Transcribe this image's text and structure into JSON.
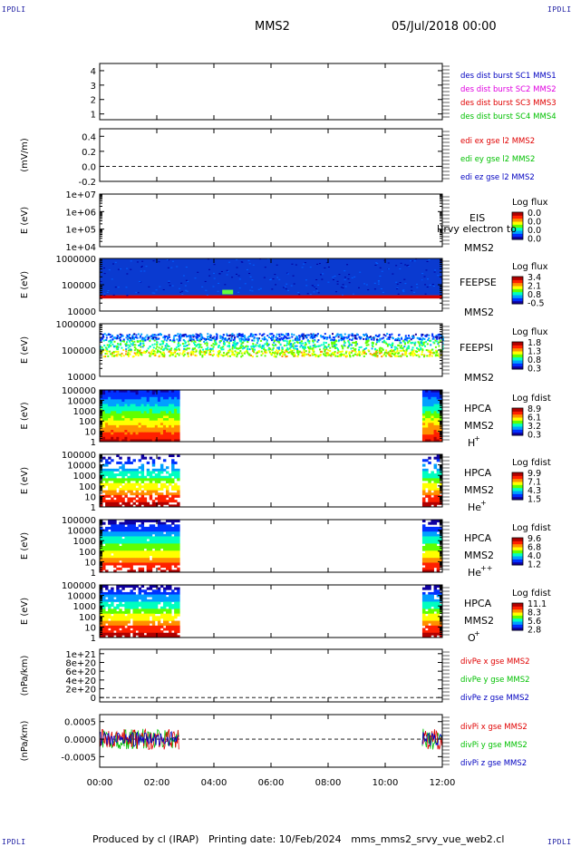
{
  "corners": {
    "tl": "IPDLI",
    "tr": "IPDLI",
    "bl": "IPDLI",
    "br": "IPDLI"
  },
  "header": {
    "title": "MMS2",
    "datetime": "05/Jul/2018 00:00"
  },
  "footer": {
    "produced_by": "Produced by cl (IRAP)",
    "printing_date": "Printing date: 10/Feb/2024",
    "filename": "mms_mms2_srvy_vue_web2.cl"
  },
  "time_axis": {
    "ticks": [
      "00:00",
      "02:00",
      "04:00",
      "06:00",
      "08:00",
      "10:00",
      "12:00"
    ]
  },
  "colors": {
    "blue": "#0000c0",
    "magenta": "#e000e0",
    "red": "#e00000",
    "green": "#00c000",
    "colorbar": [
      "#1000a0",
      "#0030ff",
      "#00a0ff",
      "#00ffc0",
      "#60ff00",
      "#ffff00",
      "#ff9000",
      "#ff2000",
      "#b00000"
    ]
  },
  "chart_data": [
    {
      "type": "line",
      "title": "",
      "ylabel": "",
      "ylim": [
        0.6,
        4.5
      ],
      "yticks": [
        "1",
        "2",
        "3",
        "4"
      ],
      "legend": [
        {
          "text": "des dist burst SC1 MMS1",
          "color": "blue"
        },
        {
          "text": "des dist burst SC2 MMS2",
          "color": "magenta"
        },
        {
          "text": "des dist burst SC3 MMS3",
          "color": "red"
        },
        {
          "text": "des dist burst SC4 MMS4",
          "color": "green"
        }
      ],
      "series": []
    },
    {
      "type": "line",
      "title": "",
      "ylabel": "(mV/m)",
      "ylim": [
        -0.2,
        0.5
      ],
      "yticks": [
        "-0.2",
        "0.0",
        "0.2",
        "0.4"
      ],
      "zero_line": 0.0,
      "legend": [
        {
          "text": "edi ex gse l2 MMS2",
          "color": "red"
        },
        {
          "text": "edi ey gse l2 MMS2",
          "color": "green"
        },
        {
          "text": "edi ez gse l2 MMS2",
          "color": "blue"
        }
      ],
      "series": []
    },
    {
      "type": "heatmap",
      "title": "",
      "ylabel": "E (eV)",
      "log_y": true,
      "yticks": [
        "1e+04",
        "1e+05",
        "1e+06",
        "1e+07"
      ],
      "instrument": [
        "EIS",
        "MMS2"
      ],
      "overlay_text": "l)rvy electron to",
      "colorbar": {
        "label": "Log flux",
        "ticks": [
          "0.0",
          "0.0",
          "0.0",
          "0.0"
        ]
      },
      "empty": true
    },
    {
      "type": "heatmap",
      "title": "",
      "ylabel": "E (eV)",
      "log_y": true,
      "yticks": [
        "10000",
        "100000",
        "1000000"
      ],
      "instrument": [
        "FEEPSE",
        "MMS2"
      ],
      "colorbar": {
        "label": "Log flux",
        "ticks": [
          "3.4",
          "2.1",
          "0.8",
          "-0.5"
        ]
      },
      "time_range_h": [
        0,
        12
      ],
      "y_range": [
        10000,
        1000000
      ],
      "bands": [
        {
          "e_min": 30000,
          "e_max": 40000,
          "level": 1.0
        },
        {
          "e_min": 40000,
          "e_max": 1000000,
          "level": 0.12
        }
      ]
    },
    {
      "type": "heatmap",
      "title": "",
      "ylabel": "E (eV)",
      "log_y": true,
      "yticks": [
        "10000",
        "100000",
        "1000000"
      ],
      "instrument": [
        "FEEPSI",
        "MMS2"
      ],
      "colorbar": {
        "label": "Log flux",
        "ticks": [
          "1.8",
          "1.3",
          "0.8",
          "0.3"
        ]
      },
      "time_range_h": [
        0,
        12
      ],
      "y_range": [
        10000,
        1000000
      ],
      "bands": [
        {
          "e_min": 60000,
          "e_max": 110000,
          "level": 0.45
        },
        {
          "e_min": 110000,
          "e_max": 250000,
          "level": 0.3
        },
        {
          "e_min": 250000,
          "e_max": 450000,
          "level": 0.08
        }
      ]
    },
    {
      "type": "heatmap",
      "title": "",
      "ylabel": "E (eV)",
      "log_y": true,
      "yticks": [
        "1",
        "10",
        "100",
        "1000",
        "10000",
        "100000"
      ],
      "instrument": [
        "HPCA",
        "MMS2",
        "H+"
      ],
      "colorbar": {
        "label": "Log fdist",
        "ticks": [
          "8.9",
          "6.1",
          "3.2",
          "0.3"
        ]
      },
      "time_range_h": [
        0,
        12
      ],
      "y_range": [
        1,
        100000
      ],
      "intervals": [
        [
          0,
          2.8
        ],
        [
          11.3,
          12
        ]
      ]
    },
    {
      "type": "heatmap",
      "title": "",
      "ylabel": "E (eV)",
      "log_y": true,
      "yticks": [
        "1",
        "10",
        "100",
        "1000",
        "10000",
        "100000"
      ],
      "instrument": [
        "HPCA",
        "MMS2",
        "He+"
      ],
      "colorbar": {
        "label": "Log fdist",
        "ticks": [
          "9.9",
          "7.1",
          "4.3",
          "1.5"
        ]
      },
      "time_range_h": [
        0,
        12
      ],
      "y_range": [
        1,
        100000
      ],
      "intervals": [
        [
          0,
          2.8
        ],
        [
          11.3,
          12
        ]
      ]
    },
    {
      "type": "heatmap",
      "title": "",
      "ylabel": "E (eV)",
      "log_y": true,
      "yticks": [
        "1",
        "10",
        "100",
        "1000",
        "10000",
        "100000"
      ],
      "instrument": [
        "HPCA",
        "MMS2",
        "He++"
      ],
      "colorbar": {
        "label": "Log fdist",
        "ticks": [
          "9.6",
          "6.8",
          "4.0",
          "1.2"
        ]
      },
      "time_range_h": [
        0,
        12
      ],
      "y_range": [
        1,
        100000
      ],
      "intervals": [
        [
          0,
          2.8
        ],
        [
          11.3,
          12
        ]
      ]
    },
    {
      "type": "heatmap",
      "title": "",
      "ylabel": "E (eV)",
      "log_y": true,
      "yticks": [
        "1",
        "10",
        "100",
        "1000",
        "10000",
        "100000"
      ],
      "instrument": [
        "HPCA",
        "MMS2",
        "O+"
      ],
      "colorbar": {
        "label": "Log fdist",
        "ticks": [
          "11.1",
          "8.3",
          "5.6",
          "2.8"
        ]
      },
      "time_range_h": [
        0,
        12
      ],
      "y_range": [
        1,
        100000
      ],
      "intervals": [
        [
          0,
          2.8
        ],
        [
          11.3,
          12
        ]
      ]
    },
    {
      "type": "line",
      "title": "",
      "ylabel": "(nPa/km)",
      "ylim": [
        -1e+20,
        1.1e+21
      ],
      "yticks": [
        "0",
        "2e+20",
        "4e+20",
        "6e+20",
        "8e+20",
        "1e+21"
      ],
      "zero_line": 0,
      "legend": [
        {
          "text": "divPe x gse MMS2",
          "color": "red"
        },
        {
          "text": "divPe y gse MMS2",
          "color": "green"
        },
        {
          "text": "divPe z gse MMS2",
          "color": "blue"
        }
      ],
      "series": []
    },
    {
      "type": "line",
      "title": "",
      "ylabel": "(nPa/km)",
      "ylim": [
        -0.0008,
        0.0007
      ],
      "yticks": [
        "-0.0005",
        "0.0000",
        "0.0005"
      ],
      "zero_line": 0,
      "legend": [
        {
          "text": "divPi x gse MMS2",
          "color": "red"
        },
        {
          "text": "divPi y gse MMS2",
          "color": "green"
        },
        {
          "text": "divPi z gse MMS2",
          "color": "blue"
        }
      ],
      "intervals": [
        [
          0,
          2.8
        ],
        [
          11.3,
          12
        ]
      ],
      "noise_amplitude": 0.0003
    }
  ]
}
